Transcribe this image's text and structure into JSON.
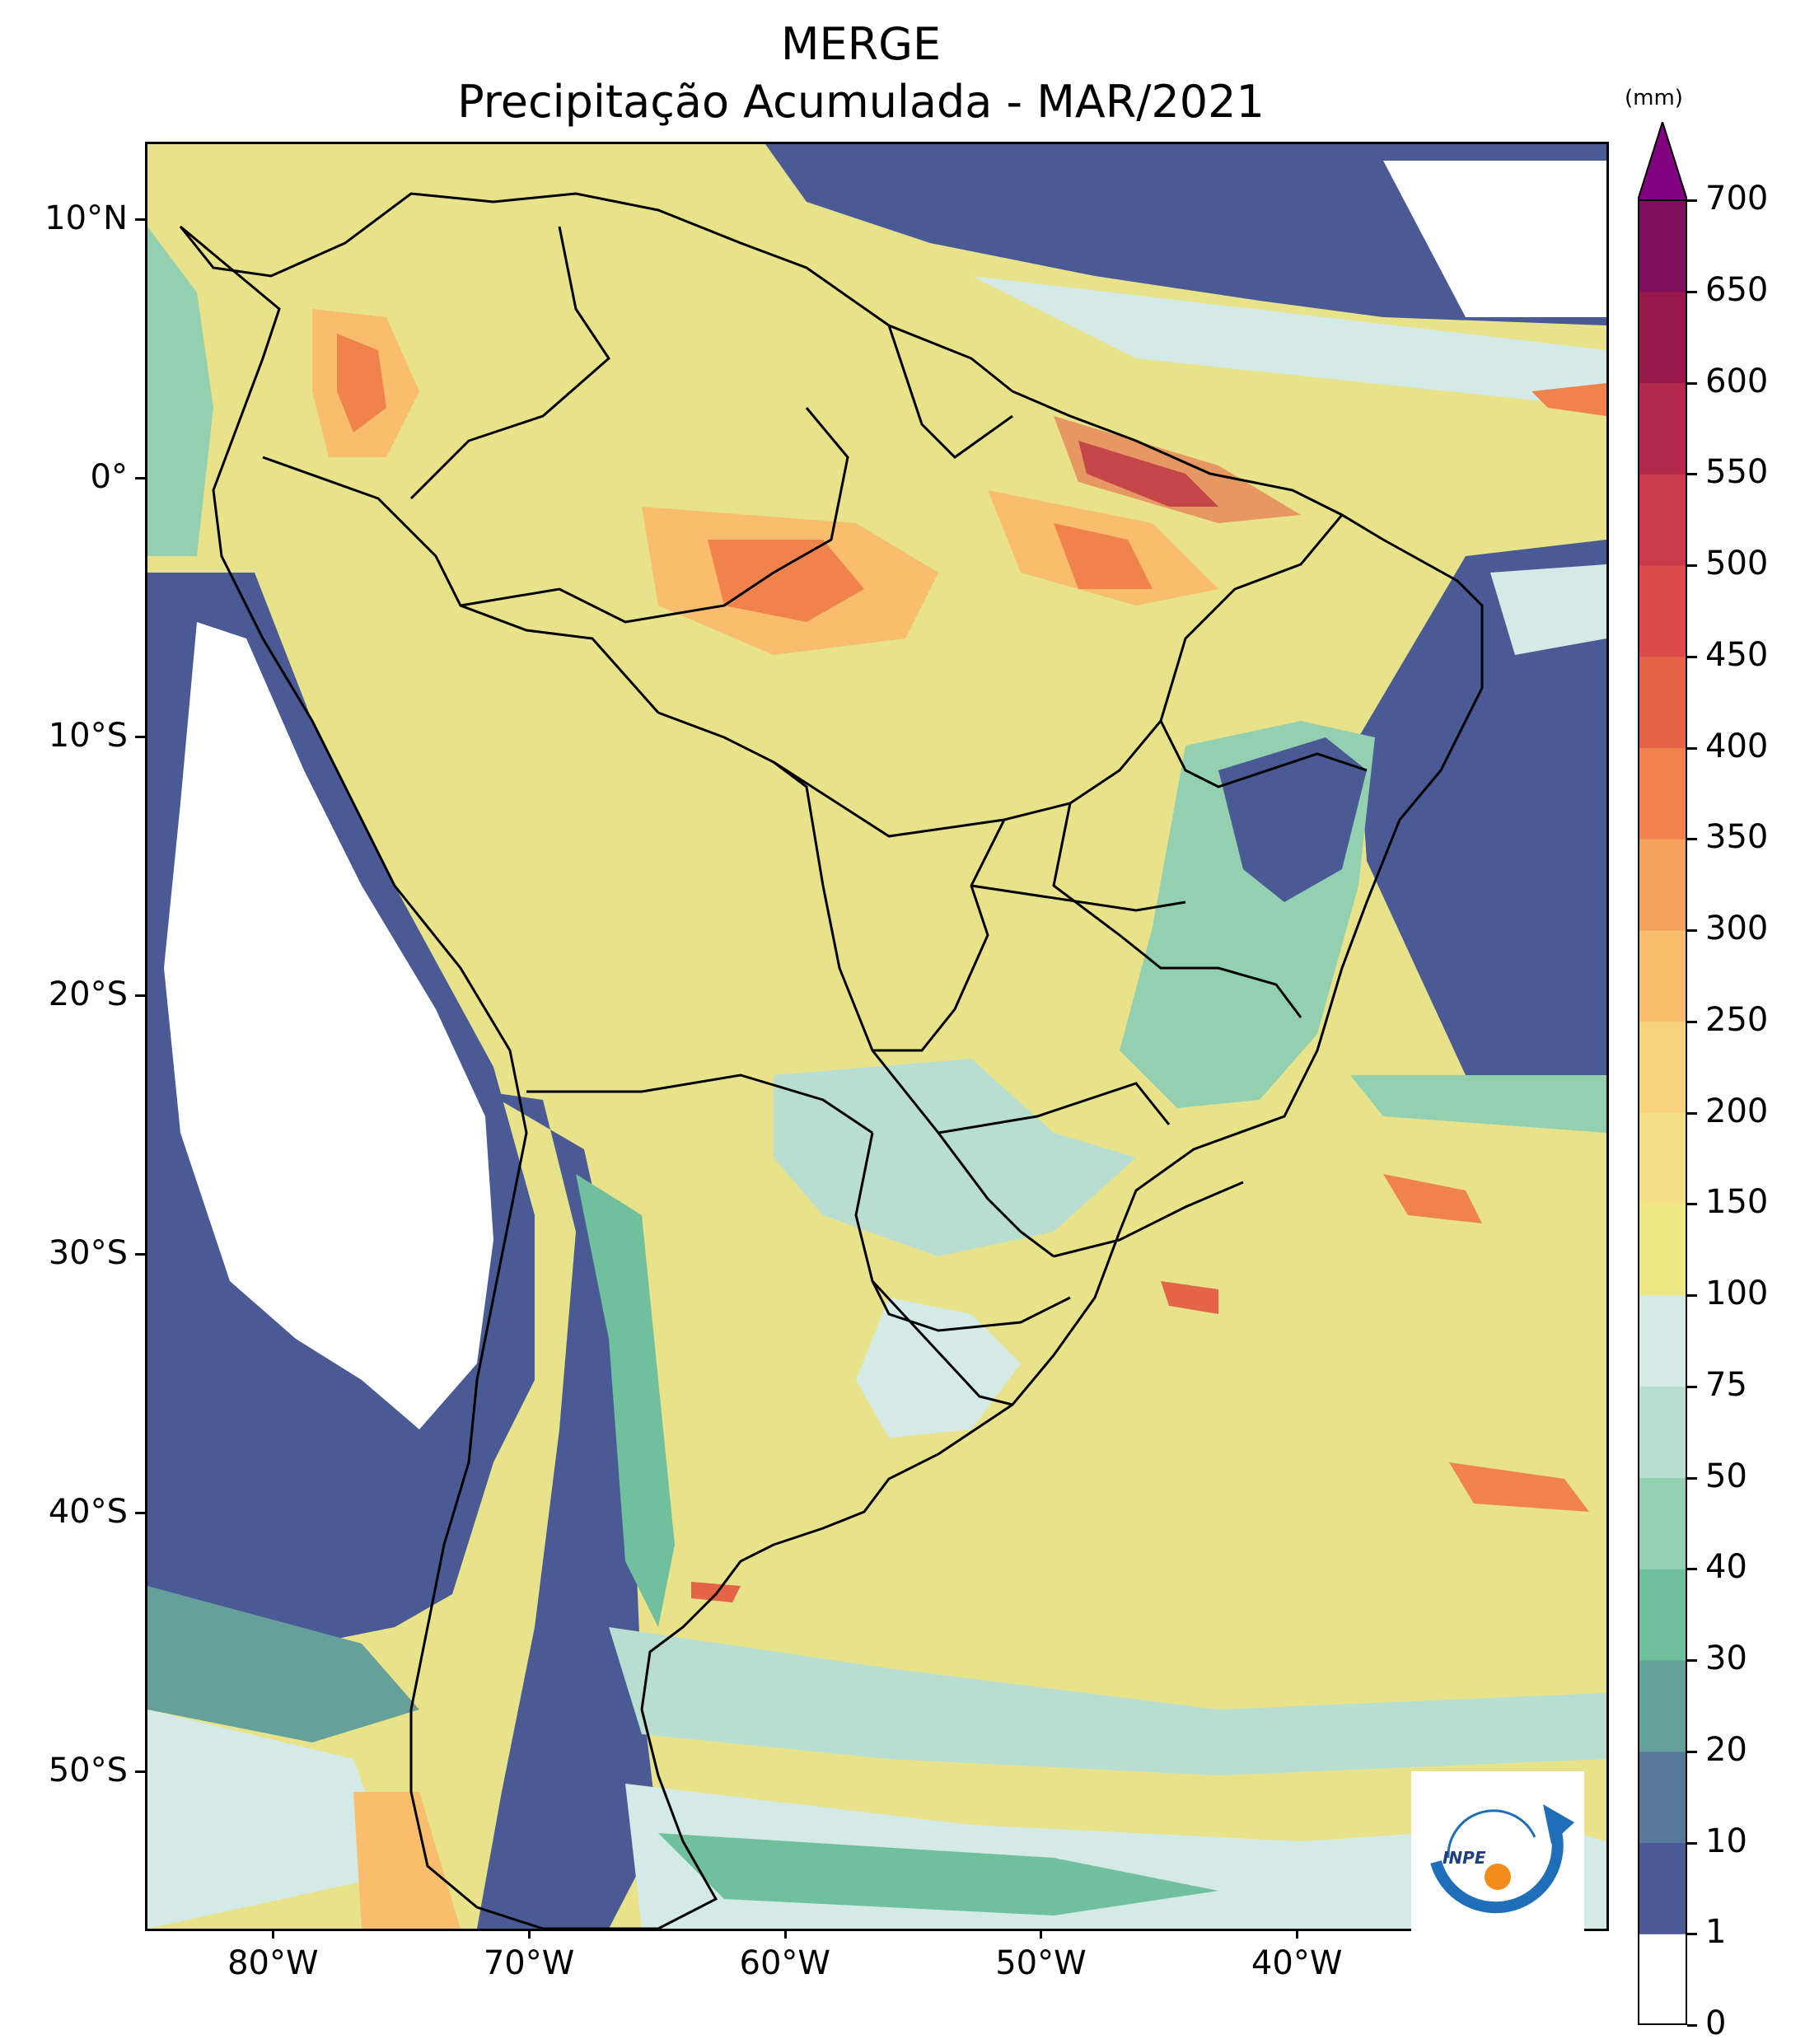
{
  "title": {
    "line1": "MERGE",
    "line2": "Precipitação Acumulada - MAR/2021"
  },
  "map": {
    "region": "South America",
    "variable": "Accumulated precipitation",
    "lon_range": [
      -85,
      -28
    ],
    "lat_range": [
      -56,
      13
    ],
    "lon_ticks": [
      {
        "value": -80,
        "label": "80°W"
      },
      {
        "value": -70,
        "label": "70°W"
      },
      {
        "value": -60,
        "label": "60°W"
      },
      {
        "value": -50,
        "label": "50°W"
      },
      {
        "value": -40,
        "label": "40°W"
      }
    ],
    "lat_ticks": [
      {
        "value": 10,
        "label": "10°N"
      },
      {
        "value": 0,
        "label": "0°"
      },
      {
        "value": -10,
        "label": "10°S"
      },
      {
        "value": -20,
        "label": "20°S"
      },
      {
        "value": -30,
        "label": "30°S"
      },
      {
        "value": -40,
        "label": "40°S"
      },
      {
        "value": -50,
        "label": "50°S"
      }
    ]
  },
  "colorbar": {
    "unit": "(mm)",
    "levels": [
      "0",
      "1",
      "10",
      "20",
      "30",
      "40",
      "50",
      "75",
      "100",
      "150",
      "200",
      "250",
      "300",
      "350",
      "400",
      "450",
      "500",
      "550",
      "600",
      "650",
      "700"
    ],
    "colors": [
      "#ffffff",
      "#4a5a94",
      "#587a9a",
      "#66a09a",
      "#70bf9d",
      "#93d0b0",
      "#b7ded0",
      "#d4eae6",
      "#ece884",
      "#f3df86",
      "#f7d37e",
      "#f8be6e",
      "#f5a35c",
      "#f0834c",
      "#e46447",
      "#db4d4a",
      "#c93a4d",
      "#b12a4c",
      "#96194b",
      "#7e0f5f"
    ],
    "extend_color": "#800080"
  },
  "logo": {
    "text": "INPE"
  }
}
